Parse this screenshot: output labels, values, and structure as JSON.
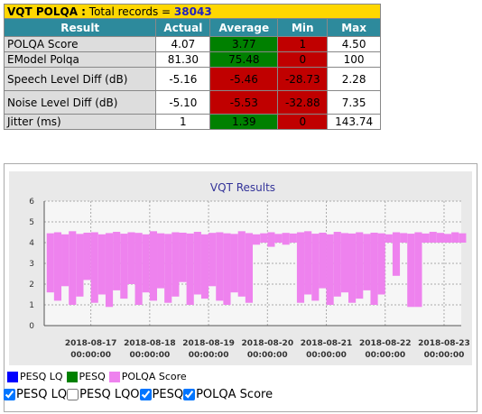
{
  "header": {
    "title": "VQT POLQA :",
    "label": "Total records =",
    "count": "38043"
  },
  "table": {
    "columns": [
      "Result",
      "Actual",
      "Average",
      "Min",
      "Max"
    ],
    "rows": [
      [
        "POLQA Score",
        "4.07",
        "3.77",
        "1",
        "4.50"
      ],
      [
        "EModel Polqa",
        "81.30",
        "75.48",
        "0",
        "100"
      ],
      [
        "Speech Level Diff (dB)",
        "-5.16",
        "-5.46",
        "-28.73",
        "2.28"
      ],
      [
        "Noise Level Diff (dB)",
        "-5.10",
        "-5.53",
        "-32.88",
        "7.35"
      ],
      [
        "Jitter (ms)",
        "1",
        "1.39",
        "0",
        "143.74"
      ]
    ],
    "cell_colors": [
      [
        null,
        null,
        "#008000",
        "#c00000",
        null
      ],
      [
        null,
        null,
        "#008000",
        "#c00000",
        null
      ],
      [
        null,
        null,
        "#c00000",
        "#c00000",
        null
      ],
      [
        null,
        null,
        "#c00000",
        "#c00000",
        null
      ],
      [
        null,
        null,
        "#008000",
        "#c00000",
        null
      ]
    ]
  },
  "chart_data": {
    "type": "range",
    "title": "VQT  Results",
    "xlim": [
      "2018-08-16 05:00:00",
      "2018-08-23 07:00:00"
    ],
    "xticks": [
      "2018-08-17 00:00:00",
      "2018-08-18 00:00:00",
      "2018-08-19 00:00:00",
      "2018-08-20 00:00:00",
      "2018-08-21 00:00:00",
      "2018-08-22 00:00:00",
      "2018-08-23 00:00:00"
    ],
    "ylim": [
      0,
      6
    ],
    "yticks": [
      0,
      1,
      2,
      3,
      4,
      5,
      6
    ],
    "grid": true,
    "x": [
      "2018-08-16 06:00:00",
      "2018-08-16 09:00:00",
      "2018-08-16 12:00:00",
      "2018-08-16 15:00:00",
      "2018-08-16 18:00:00",
      "2018-08-16 21:00:00",
      "2018-08-17 00:00:00",
      "2018-08-17 03:00:00",
      "2018-08-17 06:00:00",
      "2018-08-17 09:00:00",
      "2018-08-17 12:00:00",
      "2018-08-17 15:00:00",
      "2018-08-17 18:00:00",
      "2018-08-17 21:00:00",
      "2018-08-18 00:00:00",
      "2018-08-18 03:00:00",
      "2018-08-18 06:00:00",
      "2018-08-18 09:00:00",
      "2018-08-18 12:00:00",
      "2018-08-18 15:00:00",
      "2018-08-18 18:00:00",
      "2018-08-18 21:00:00",
      "2018-08-19 00:00:00",
      "2018-08-19 03:00:00",
      "2018-08-19 06:00:00",
      "2018-08-19 09:00:00",
      "2018-08-19 12:00:00",
      "2018-08-19 15:00:00",
      "2018-08-19 18:00:00",
      "2018-08-19 21:00:00",
      "2018-08-20 00:00:00",
      "2018-08-20 03:00:00",
      "2018-08-20 06:00:00",
      "2018-08-20 09:00:00",
      "2018-08-20 12:00:00",
      "2018-08-20 15:00:00",
      "2018-08-20 18:00:00",
      "2018-08-20 21:00:00",
      "2018-08-21 00:00:00",
      "2018-08-21 03:00:00",
      "2018-08-21 06:00:00",
      "2018-08-21 09:00:00",
      "2018-08-21 12:00:00",
      "2018-08-21 15:00:00",
      "2018-08-21 18:00:00",
      "2018-08-21 21:00:00",
      "2018-08-22 00:00:00",
      "2018-08-22 03:00:00",
      "2018-08-22 06:00:00",
      "2018-08-22 09:00:00",
      "2018-08-22 12:00:00",
      "2018-08-22 15:00:00",
      "2018-08-22 18:00:00",
      "2018-08-22 21:00:00",
      "2018-08-23 00:00:00",
      "2018-08-23 03:00:00",
      "2018-08-23 06:00:00"
    ],
    "series": [
      {
        "name": "POLQA Score",
        "color": "#ee82ee",
        "values": [
          4.45,
          4.5,
          4.4,
          4.55,
          4.42,
          4.48,
          4.5,
          4.4,
          4.46,
          4.52,
          4.43,
          4.5,
          4.47,
          4.4,
          4.55,
          4.45,
          4.42,
          4.5,
          4.48,
          4.44,
          4.52,
          4.4,
          4.47,
          4.5,
          4.45,
          4.42,
          4.55,
          4.46,
          4.4,
          4.45,
          4.5,
          4.42,
          4.47,
          4.44,
          4.5,
          4.55,
          4.43,
          4.48,
          4.4,
          4.52,
          4.46,
          4.44,
          4.5,
          4.42,
          4.48,
          4.45,
          4.4,
          4.5,
          4.46,
          4.43,
          4.5,
          4.44,
          4.52,
          4.47,
          4.42,
          4.5,
          4.45
        ],
        "lows": [
          1.6,
          1.2,
          1.9,
          1.0,
          1.4,
          2.2,
          1.1,
          1.5,
          0.9,
          1.7,
          1.3,
          2.0,
          1.0,
          1.6,
          1.2,
          1.8,
          1.1,
          1.4,
          2.1,
          1.0,
          1.5,
          1.3,
          1.9,
          1.2,
          1.0,
          1.6,
          1.4,
          1.1,
          3.9,
          4.0,
          3.8,
          4.0,
          3.9,
          4.0,
          1.1,
          1.5,
          1.2,
          1.8,
          1.0,
          1.4,
          1.6,
          1.1,
          1.3,
          1.7,
          1.0,
          1.5,
          4.0,
          2.4,
          4.0,
          0.9,
          0.9,
          4.0,
          4.0,
          4.0,
          4.0,
          4.0,
          4.0
        ]
      }
    ],
    "legend_items": [
      {
        "name": "PESQ LQ",
        "color": "#0000ff"
      },
      {
        "name": "PESQ",
        "color": "#008000"
      },
      {
        "name": "POLQA Score",
        "color": "#ee82ee"
      }
    ],
    "controls": [
      {
        "label": "PESQ LQ",
        "checked": true
      },
      {
        "label": "PESQ LQO",
        "checked": false
      },
      {
        "label": "PESQ",
        "checked": true
      },
      {
        "label": "POLQA Score",
        "checked": true
      }
    ]
  }
}
